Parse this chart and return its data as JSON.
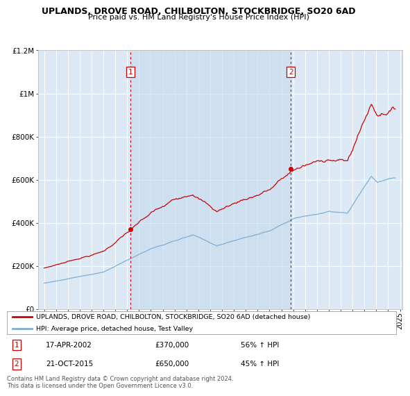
{
  "title": "UPLANDS, DROVE ROAD, CHILBOLTON, STOCKBRIDGE, SO20 6AD",
  "subtitle": "Price paid vs. HM Land Registry's House Price Index (HPI)",
  "ylim": [
    0,
    1200000
  ],
  "yticks": [
    0,
    200000,
    400000,
    600000,
    800000,
    1000000,
    1200000
  ],
  "ytick_labels": [
    "£0",
    "£200K",
    "£400K",
    "£600K",
    "£800K",
    "£1M",
    "£1.2M"
  ],
  "xlim_start": 1994.5,
  "xlim_end": 2025.2,
  "bg_color": "#dce9f5",
  "shade_color": "#c5d9ee",
  "grid_color": "#ffffff",
  "red_color": "#cc0000",
  "blue_color": "#7bafd4",
  "vline1_x": 2002.29,
  "vline2_x": 2015.8,
  "transaction1_x": 2002.29,
  "transaction1_y": 370000,
  "transaction2_x": 2015.8,
  "transaction2_y": 650000,
  "legend_label_red": "UPLANDS, DROVE ROAD, CHILBOLTON, STOCKBRIDGE, SO20 6AD (detached house)",
  "legend_label_blue": "HPI: Average price, detached house, Test Valley",
  "footnote": "Contains HM Land Registry data © Crown copyright and database right 2024.\nThis data is licensed under the Open Government Licence v3.0.",
  "sale1_date": "17-APR-2002",
  "sale1_price": "£370,000",
  "sale1_hpi": "56% ↑ HPI",
  "sale2_date": "21-OCT-2015",
  "sale2_price": "£650,000",
  "sale2_hpi": "45% ↑ HPI"
}
